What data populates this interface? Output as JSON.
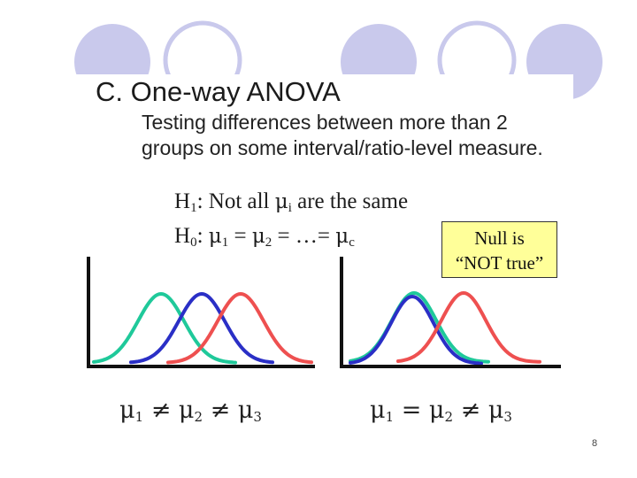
{
  "slide": {
    "title": "C. One-way ANOVA",
    "body": "Testing differences between more than 2 groups on some interval/ratio-level measure.",
    "h1": {
      "label": "H",
      "sub": "1",
      "text": ": Not all ",
      "mu": "μ",
      "mu_sub": "i",
      "tail": " are the same"
    },
    "h0": {
      "label": "H",
      "sub": "0",
      "text": ": ",
      "eq": " = ",
      "dots": " …= ",
      "last_sub": "c"
    },
    "callout": {
      "line1": "Null is",
      "line2": "“NOT true”"
    },
    "left_caption": {
      "mu": "μ",
      "op1": " ≠ ",
      "op2": " ≠ "
    },
    "right_caption": {
      "mu": "μ",
      "op1": " = ",
      "op2": " ≠ "
    },
    "page_number": "8"
  },
  "colors": {
    "circle_fill": "#c9c9ec",
    "circle_outline": "#c9c9ec",
    "teal": "#1fc99a",
    "blue": "#2a2fc6",
    "red": "#ee5050",
    "callout_bg": "#ffff99"
  }
}
